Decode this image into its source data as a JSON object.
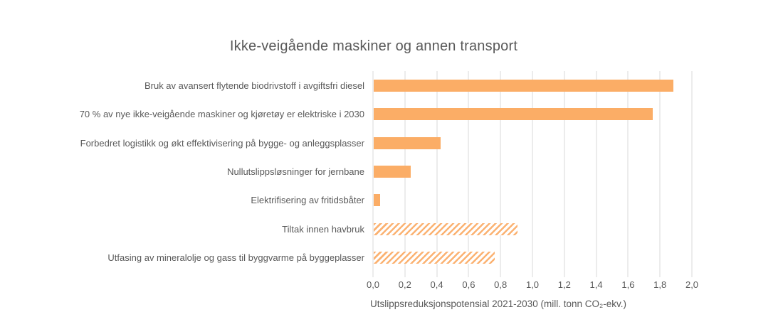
{
  "chart_data": {
    "type": "bar",
    "orientation": "horizontal",
    "title": "Ikke-veigående maskiner og annen transport",
    "xlabel": "Utslippsreduksjonspotensial 2021-2030 (mill. tonn CO₂-ekv.)",
    "ylabel": "",
    "categories": [
      "Bruk av avansert flytende biodrivstoff i avgiftsfri diesel",
      "70 % av nye ikke-veigående maskiner og kjøretøy er elektriske i 2030",
      "Forbedret logistikk og økt effektivisering på bygge- og anleggsplasser",
      "Nullutslippsløsninger for jernbane",
      "Elektrifisering av fritidsbåter",
      "Tiltak innen havbruk",
      "Utfasing av mineralolje og gass til byggvarme på byggeplasser"
    ],
    "values": [
      1.88,
      1.75,
      0.42,
      0.23,
      0.04,
      0.9,
      0.76
    ],
    "bar_styles": [
      "solid",
      "solid",
      "solid",
      "solid",
      "solid",
      "hatched",
      "hatched"
    ],
    "xlim": [
      0,
      2.0
    ],
    "x_ticks": [
      "0,0",
      "0,2",
      "0,4",
      "0,6",
      "0,8",
      "1,0",
      "1,2",
      "1,4",
      "1,6",
      "1,8",
      "2,0"
    ],
    "grid": true,
    "legend": "none",
    "colors": {
      "bar_solid": "#FBAD66",
      "bar_hatch_stripe": "#FBB272",
      "hatch_background": "#FFFFFF",
      "gridline": "#D9D9D9",
      "text": "#595959"
    }
  }
}
